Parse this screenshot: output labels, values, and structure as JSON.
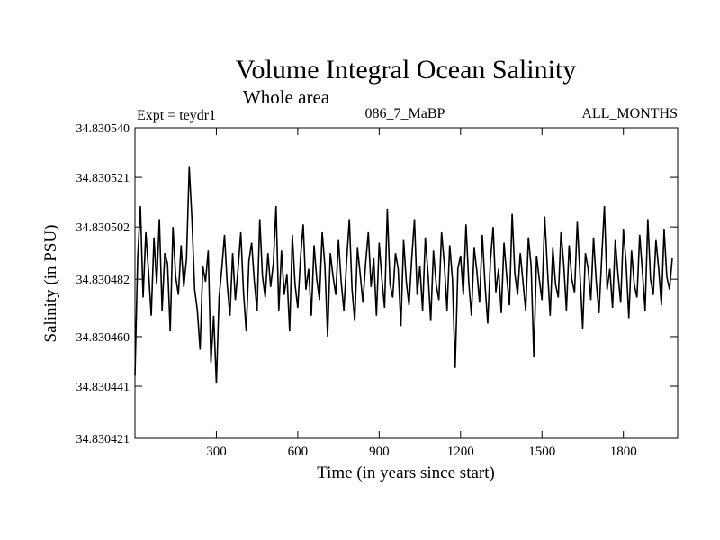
{
  "chart_data": {
    "type": "line",
    "title": "Volume Integral Ocean Salinity",
    "subtitle": "Whole area",
    "annotations": {
      "left": "Expt = teydr1",
      "center": "086_7_MaBP",
      "right": "ALL_MONTHS"
    },
    "xlabel": "Time (in years since start)",
    "ylabel": "Salinity (in PSU)",
    "xlim": [
      0,
      2000
    ],
    "ylim": [
      34.830421,
      34.83054
    ],
    "x_ticks": [
      300,
      600,
      900,
      1200,
      1500,
      1800
    ],
    "x_tick_labels": [
      "300",
      "600",
      "900",
      "1200",
      "1500",
      "1800"
    ],
    "y_ticks": [
      34.830421,
      34.830441,
      34.83046,
      34.830482,
      34.830502,
      34.830521,
      34.83054
    ],
    "y_tick_labels": [
      "34.830421",
      "34.830441",
      "34.830460",
      "34.830482",
      "34.830502",
      "34.830521",
      "34.830540"
    ],
    "grid": false,
    "series": [
      {
        "x_start": 0,
        "x_step": 10,
        "values": [
          34.830445,
          34.83049,
          34.83051,
          34.830475,
          34.8305,
          34.830485,
          34.830468,
          34.830498,
          34.83048,
          34.830505,
          34.83047,
          34.830492,
          34.830488,
          34.830462,
          34.830502,
          34.830483,
          34.830476,
          34.830495,
          34.830479,
          34.83049,
          34.830525,
          34.830505,
          34.830478,
          34.83047,
          34.830455,
          34.830487,
          34.830481,
          34.830493,
          34.83045,
          34.830468,
          34.830442,
          34.830475,
          34.830486,
          34.830499,
          34.83048,
          34.830468,
          34.830492,
          34.830474,
          34.830486,
          34.8305,
          34.830477,
          34.830462,
          34.830489,
          34.830496,
          34.830481,
          34.83047,
          34.830505,
          34.830483,
          34.830475,
          34.830492,
          34.830479,
          34.830488,
          34.83051,
          34.83047,
          34.830493,
          34.830476,
          34.830484,
          34.830462,
          34.830499,
          34.83048,
          34.830471,
          34.83049,
          34.830503,
          34.830478,
          34.830486,
          34.830468,
          34.830495,
          34.830482,
          34.830474,
          34.8305,
          34.830487,
          34.83046,
          34.830492,
          34.830483,
          34.830476,
          34.830497,
          34.830481,
          34.83047,
          34.830489,
          34.830505,
          34.830478,
          34.830466,
          34.830494,
          34.830484,
          34.830473,
          34.830488,
          34.8305,
          34.830479,
          34.83049,
          34.830468,
          34.830496,
          34.830482,
          34.830471,
          34.830509,
          34.83048,
          34.830475,
          34.830492,
          34.830486,
          34.830464,
          34.830497,
          34.830481,
          34.830472,
          34.83049,
          34.830505,
          34.830476,
          34.830487,
          34.83047,
          34.830498,
          34.830484,
          34.830466,
          34.830493,
          34.83048,
          34.830474,
          34.8305,
          34.830488,
          34.83047,
          34.830495,
          34.830482,
          34.830448,
          34.830486,
          34.830491,
          34.830476,
          34.830503,
          34.830481,
          34.830468,
          34.830494,
          34.830485,
          34.830473,
          34.830499,
          34.83048,
          34.830465,
          34.830489,
          34.830502,
          34.830477,
          34.830486,
          34.830469,
          34.830496,
          34.830483,
          34.830472,
          34.830507,
          34.830484,
          34.830476,
          34.830492,
          34.830481,
          34.83047,
          34.830498,
          34.830487,
          34.830452,
          34.830491,
          34.830482,
          34.830474,
          34.830506,
          34.830486,
          34.830468,
          34.830494,
          34.83048,
          34.830475,
          34.8305,
          34.830488,
          34.83047,
          34.830495,
          34.830482,
          34.830477,
          34.830504,
          34.830484,
          34.830463,
          34.830492,
          34.830486,
          34.830474,
          34.830498,
          34.830481,
          34.830469,
          34.83049,
          34.83051,
          34.830478,
          34.830486,
          34.830471,
          34.830497,
          34.830484,
          34.830473,
          34.830501,
          34.830488,
          34.830467,
          34.830493,
          34.83048,
          34.830475,
          34.830499,
          34.830485,
          34.83047,
          34.830505,
          34.830482,
          34.830476,
          34.830497,
          34.830486,
          34.830472,
          34.830501,
          34.830483,
          34.830478,
          34.83049
        ]
      }
    ]
  }
}
